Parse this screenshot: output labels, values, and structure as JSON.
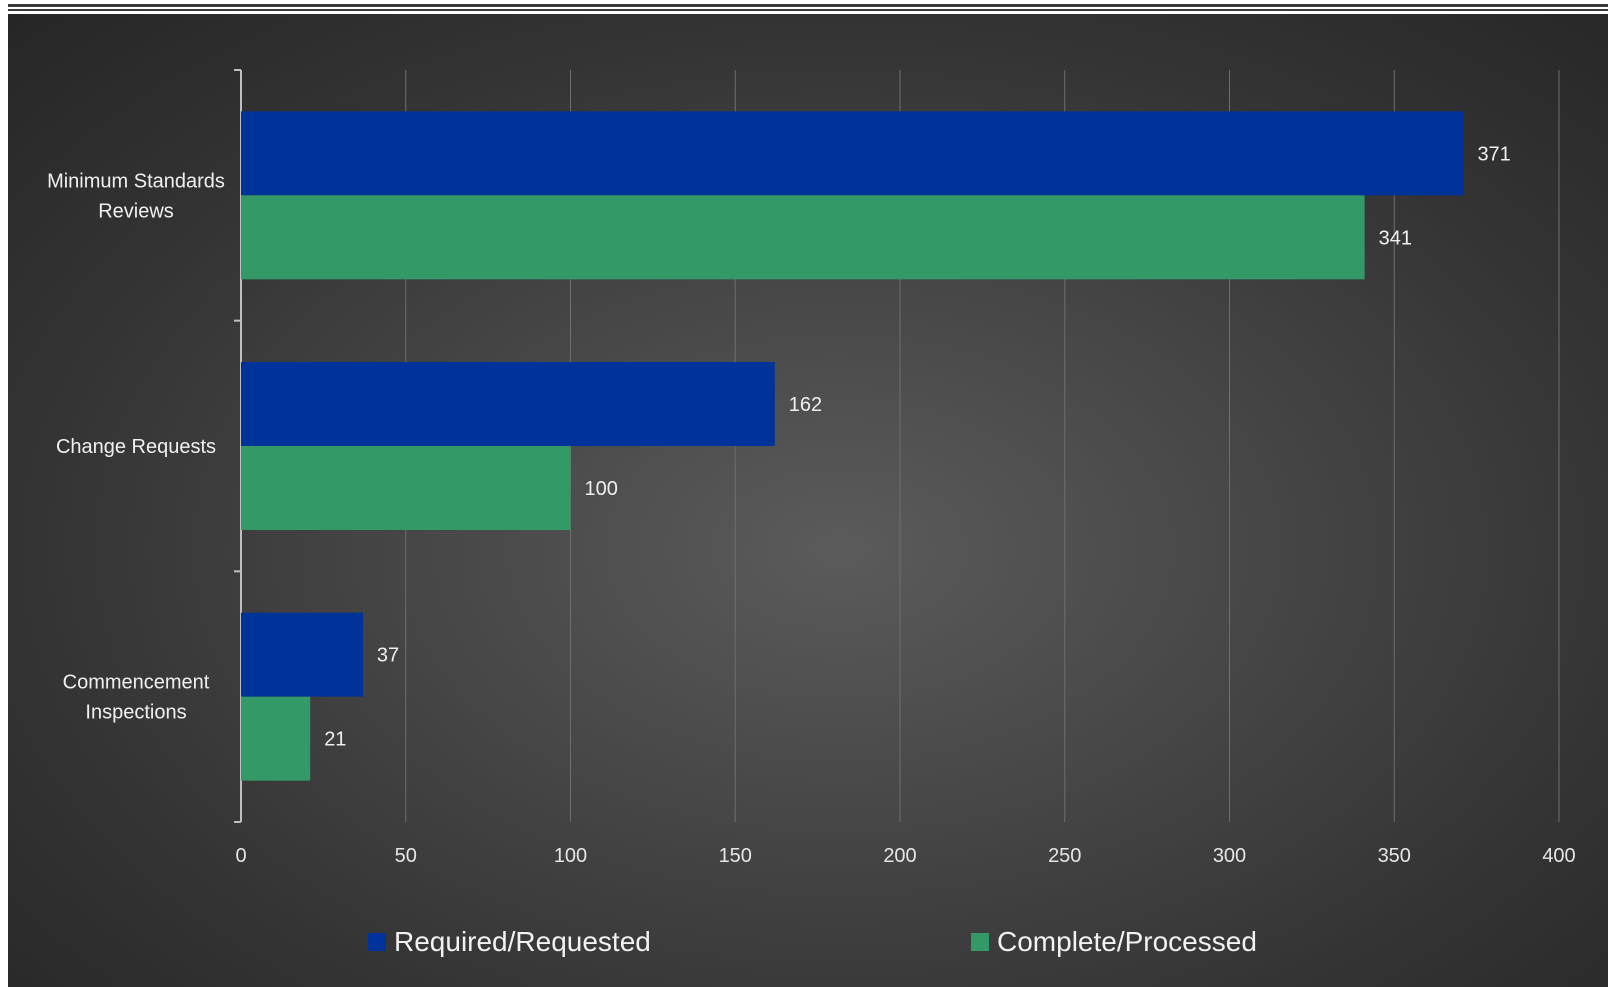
{
  "chart_data": {
    "type": "bar",
    "orientation": "horizontal",
    "title": "",
    "xlabel": "",
    "ylabel": "",
    "categories": [
      "Minimum Standards Reviews",
      "Change Requests",
      "Commencement Inspections"
    ],
    "category_lines": [
      [
        "Minimum Standards",
        "Reviews"
      ],
      [
        "Change Requests"
      ],
      [
        "Commencement",
        "Inspections"
      ]
    ],
    "series": [
      {
        "name": "Required/Requested",
        "color": "#003399",
        "values": [
          371,
          162,
          37
        ]
      },
      {
        "name": "Complete/Processed",
        "color": "#339966",
        "values": [
          341,
          100,
          21
        ]
      }
    ],
    "xlim": [
      0,
      400
    ],
    "x_ticks": [
      "0",
      "50",
      "100",
      "150",
      "200",
      "250",
      "300",
      "350",
      "400"
    ],
    "grid": "vertical",
    "legend_position": "bottom",
    "data_labels": true
  }
}
